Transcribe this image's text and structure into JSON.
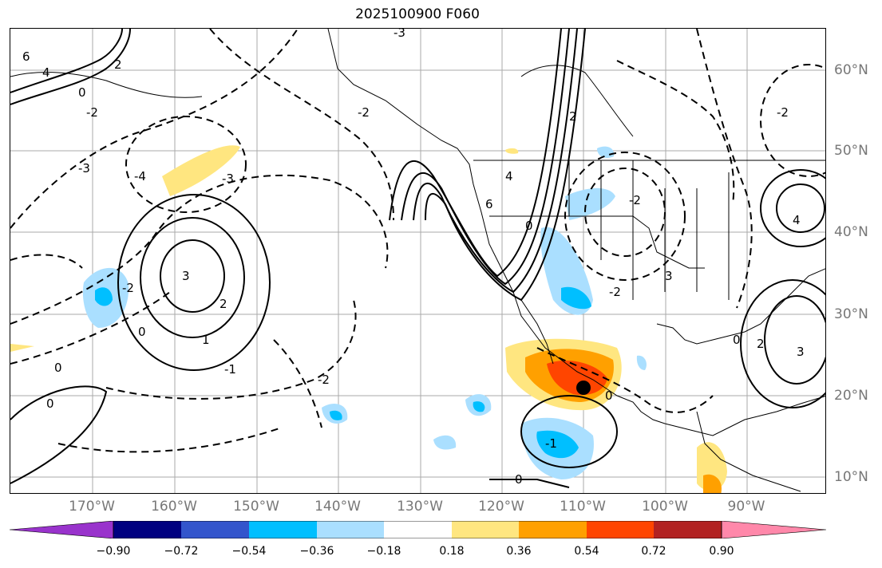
{
  "title": "2025100900 F060",
  "map": {
    "lon_labels": [
      "170°W",
      "160°W",
      "150°W",
      "140°W",
      "130°W",
      "120°W",
      "110°W",
      "100°W",
      "90°W"
    ],
    "lat_labels": [
      "60°N",
      "50°N",
      "40°N",
      "30°N",
      "20°N",
      "10°N"
    ],
    "contour_labels": [
      "6",
      "4",
      "2",
      "0",
      "-2",
      "-3",
      "-4",
      "-3",
      "-2",
      "3",
      "2",
      "1",
      "0",
      "-1",
      "-2",
      "0",
      "0",
      "-3",
      "-2",
      "6",
      "4",
      "0",
      "-2",
      "-2",
      "2",
      "3",
      "4",
      "0",
      "-2",
      "3",
      "2",
      "0",
      "-1",
      "0"
    ],
    "grid": true,
    "field": "shaded anomaly with contour lines",
    "center_marker": "black dot near 110°W 21°N"
  },
  "colorbar": {
    "ticks": [
      "−0.90",
      "−0.72",
      "−0.54",
      "−0.36",
      "−0.18",
      "0.18",
      "0.36",
      "0.54",
      "0.72",
      "0.90"
    ],
    "colors": [
      "#9933cc",
      "#000080",
      "#3355cc",
      "#00bfff",
      "#aadfff",
      "#ffffff",
      "#ffe680",
      "#ffa000",
      "#ff4500",
      "#b22222",
      "#ff88aa"
    ]
  }
}
